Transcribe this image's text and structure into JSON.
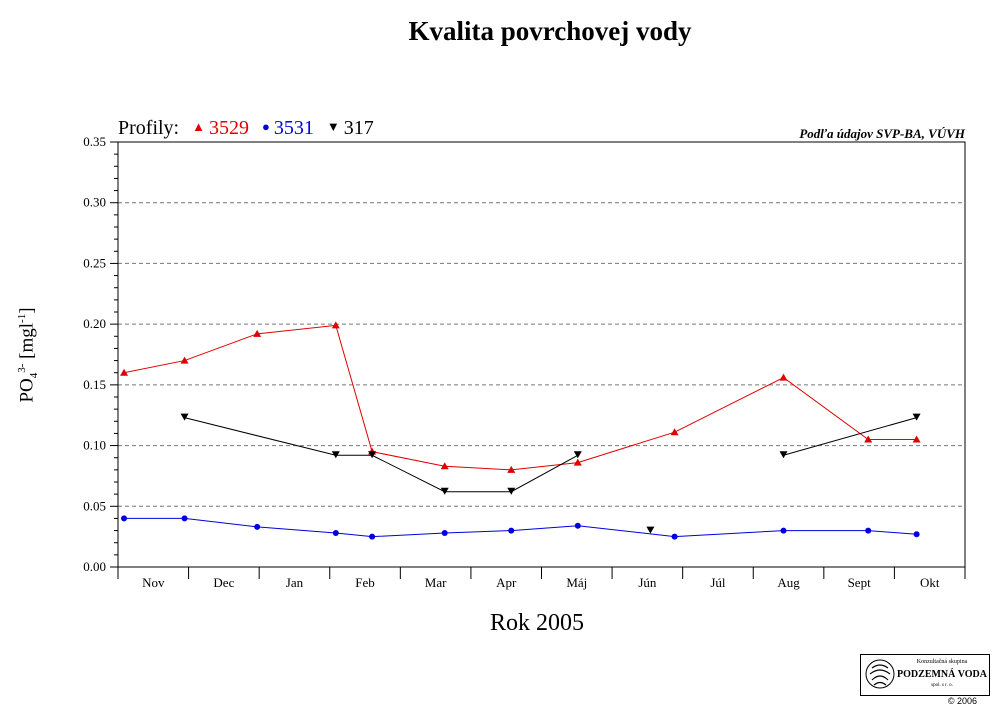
{
  "chart_data": {
    "type": "line",
    "title": "Kvalita povrchovej vody",
    "legend_title": "Profily:",
    "legend_placement": "top-left",
    "source_note": "Podľa údajov SVP-BA, VÚVH",
    "xlabel": "Rok 2005",
    "ylabel_base": "PO",
    "ylabel_sub": "4",
    "ylabel_sup": "3-",
    "ylabel_unit": "[mgl",
    "ylabel_unit_sup": "-1",
    "ylabel_close": "]",
    "ylim": [
      0,
      0.35
    ],
    "yticks": [
      "0.00",
      "0.05",
      "0.10",
      "0.15",
      "0.20",
      "0.25",
      "0.30",
      "0.35"
    ],
    "grid": "horizontal dashed",
    "categories": [
      "Nov",
      "Dec",
      "Jan",
      "Feb",
      "Mar",
      "Apr",
      "Máj",
      "Jún",
      "Júl",
      "Aug",
      "Sept",
      "Okt"
    ],
    "series": [
      {
        "name": "3529",
        "color": "#e00000",
        "marker": "triangle-up",
        "x": [
          0.05,
          0.55,
          1.15,
          1.8,
          2.1,
          2.7,
          3.25,
          3.8,
          4.6,
          5.5,
          6.2,
          6.6
        ],
        "values": [
          0.16,
          0.17,
          0.192,
          0.199,
          0.095,
          0.083,
          0.08,
          0.086,
          0.111,
          0.156,
          0.105,
          0.105
        ]
      },
      {
        "name": "3531",
        "color": "#0000dd",
        "marker": "circle",
        "x": [
          0.05,
          0.55,
          1.15,
          1.8,
          2.1,
          2.7,
          3.25,
          3.8,
          4.6,
          5.5,
          6.2,
          6.6
        ],
        "values": [
          0.04,
          0.04,
          0.033,
          0.028,
          0.025,
          0.028,
          0.03,
          0.034,
          0.025,
          0.03,
          0.03,
          0.027
        ]
      },
      {
        "name": "317",
        "color": "#000000",
        "marker": "triangle-down",
        "x": [
          0.55,
          1.8,
          2.1,
          2.7,
          3.25,
          3.8,
          4.4,
          5.5,
          6.6
        ],
        "values": [
          0.123,
          0.092,
          0.092,
          0.062,
          0.062,
          0.092,
          0.03,
          0.092,
          0.123
        ],
        "breaks_after": [
          5,
          6
        ]
      }
    ]
  },
  "logo": {
    "line1": "Konzultačná skupina",
    "line2": "PODZEMNÁ VODA",
    "line3": "spol. s r. o."
  },
  "copyright": "© 2006"
}
